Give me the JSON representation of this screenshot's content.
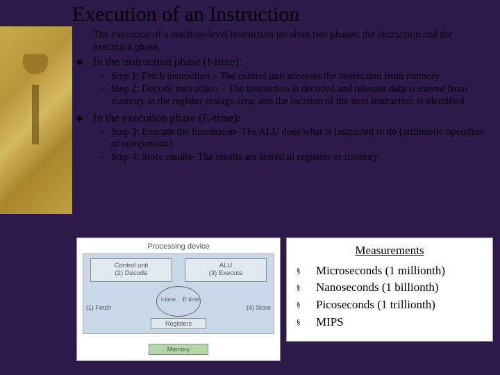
{
  "title": "Execution of an Instruction",
  "intro": "The execution of a machine-level instruction involves two phases: the instruction and the execution phase.",
  "phase1": {
    "label": "In the instruction phase (I-time):",
    "steps": [
      "Step 1: Fetch instruction – The control unit accesses the instruction from memory",
      "Step 2: Decode instruction – The instruction is decoded and relevant data is moved from memory to the register storage area, and the location of the next instruction is identified"
    ]
  },
  "phase2": {
    "label": "In the execution phase (E-time):",
    "steps": [
      "Step 3: Execute the Instruction- The ALU does what is instructed to do (arithmetic operation or comparison)",
      "Step 4: Store results- The results are stored in registers or memory"
    ]
  },
  "diagram": {
    "title": "Processing device",
    "cu_line1": "Control unit",
    "cu_line2": "(2) Decode",
    "alu_line1": "ALU",
    "alu_line2": "(3) Execute",
    "registers": "Registers",
    "memory": "Memory",
    "itime": "I-time",
    "etime": "E-time",
    "fetch": "(1) Fetch",
    "store": "(4) Store",
    "bg_color": "#c8d8e8",
    "box_color": "#e0e8f0",
    "mem_color": "#b4d8a8"
  },
  "measurements": {
    "title": "Measurements",
    "items": [
      "Microseconds (1 millionth)",
      "Nanoseconds (1 billionth)",
      "Picoseconds (1 trillionth)",
      "MIPS"
    ]
  },
  "glyphs": {
    "diamond": "◆",
    "dash": "–",
    "square": "§"
  }
}
